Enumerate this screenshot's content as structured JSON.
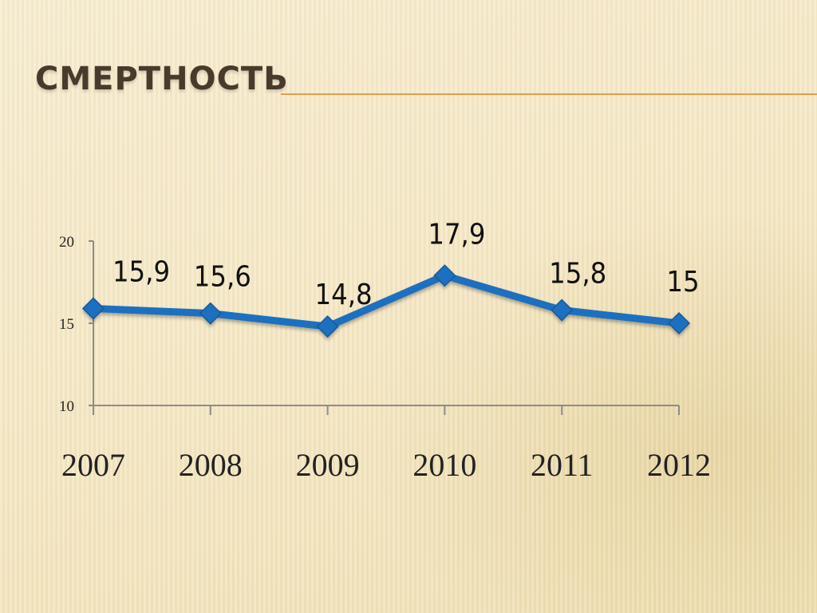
{
  "slide": {
    "title": "СМЕРТНОСТЬ"
  },
  "colors": {
    "line": "#1e6fbf",
    "axis": "#8c8c8c",
    "title_rule": "#e0a050"
  },
  "chart_data": {
    "type": "line",
    "title": "",
    "xlabel": "",
    "ylabel": "",
    "categories": [
      "2007",
      "2008",
      "2009",
      "2010",
      "2011",
      "2012"
    ],
    "series": [
      {
        "values": [
          15.9,
          15.6,
          14.8,
          17.9,
          15.8,
          15
        ],
        "labels": [
          "15,9",
          "15,6",
          "14,8",
          "17,9",
          "15,8",
          "15"
        ]
      }
    ],
    "y_ticks": [
      "10",
      "15",
      "20"
    ],
    "ylim": [
      10,
      20
    ],
    "grid": false,
    "legend": "none",
    "marker": "diamond"
  }
}
